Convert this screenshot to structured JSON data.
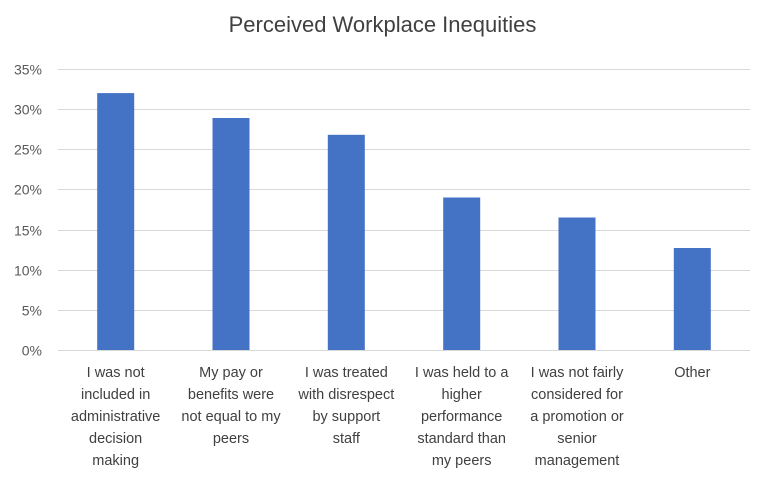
{
  "chart_data": {
    "type": "bar",
    "title": "Perceived Workplace Inequities",
    "categories": [
      [
        "I was not",
        "included in",
        "administrative",
        "decision",
        "making"
      ],
      [
        "My pay or",
        "benefits were",
        "not equal to my",
        "peers"
      ],
      [
        "I was treated",
        "with disrespect",
        "by  support",
        "staff"
      ],
      [
        "I was held to a",
        "higher",
        "performance",
        "standard than",
        "my peers"
      ],
      [
        "I was not fairly",
        "considered for",
        "a promotion or",
        "senior",
        "management"
      ],
      [
        "Other"
      ]
    ],
    "values": [
      32,
      28.9,
      26.8,
      19,
      16.5,
      12.7
    ],
    "ylim": [
      0,
      35
    ],
    "yticks": [
      {
        "value": 0,
        "label": "0%"
      },
      {
        "value": 5,
        "label": "5%"
      },
      {
        "value": 10,
        "label": "10%"
      },
      {
        "value": 15,
        "label": "15%"
      },
      {
        "value": 20,
        "label": "20%"
      },
      {
        "value": 25,
        "label": "25%"
      },
      {
        "value": 30,
        "label": "30%"
      },
      {
        "value": 35,
        "label": "35%"
      }
    ],
    "grid": true,
    "bar_color": "#4472C4",
    "grid_color": "#D9D9D9"
  }
}
